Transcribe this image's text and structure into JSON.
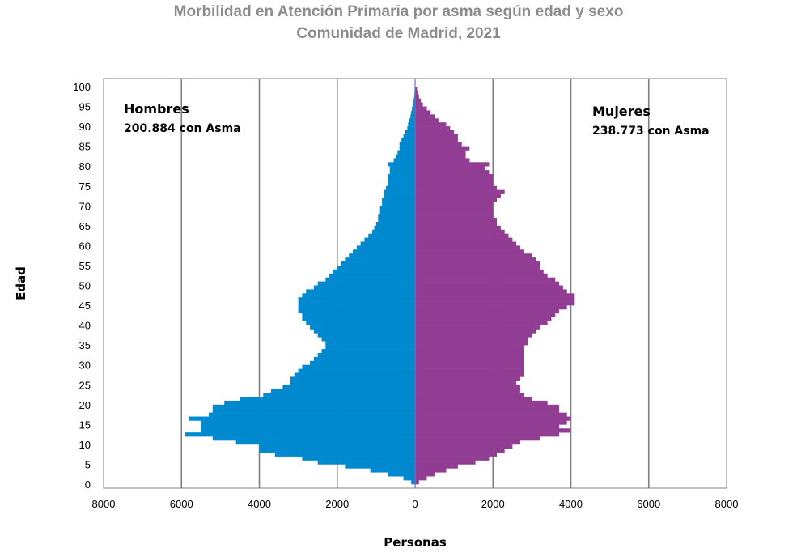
{
  "chart_data": {
    "type": "bar",
    "orientation": "horizontal",
    "title": "Morbilidad en Atención Primaria por asma según edad y sexo",
    "subtitle": "Comunidad de Madrid, 2021",
    "xlabel": "Personas",
    "ylabel": "Edad",
    "xlim": [
      -8000,
      8000
    ],
    "ylim": [
      0,
      100
    ],
    "x_ticks": [
      -8000,
      -6000,
      -4000,
      -2000,
      0,
      2000,
      4000,
      6000,
      8000
    ],
    "x_tick_labels": [
      "8000",
      "6000",
      "4000",
      "2000",
      "0",
      "2000",
      "4000",
      "6000",
      "8000"
    ],
    "y_ticks": [
      0,
      5,
      10,
      15,
      20,
      25,
      30,
      35,
      40,
      45,
      50,
      55,
      60,
      65,
      70,
      75,
      80,
      85,
      90,
      95,
      100
    ],
    "grid": "vertical",
    "ages": [
      0,
      1,
      2,
      3,
      4,
      5,
      6,
      7,
      8,
      9,
      10,
      11,
      12,
      13,
      14,
      15,
      16,
      17,
      18,
      19,
      20,
      21,
      22,
      23,
      24,
      25,
      26,
      27,
      28,
      29,
      30,
      31,
      32,
      33,
      34,
      35,
      36,
      37,
      38,
      39,
      40,
      41,
      42,
      43,
      44,
      45,
      46,
      47,
      48,
      49,
      50,
      51,
      52,
      53,
      54,
      55,
      56,
      57,
      58,
      59,
      60,
      61,
      62,
      63,
      64,
      65,
      66,
      67,
      68,
      69,
      70,
      71,
      72,
      73,
      74,
      75,
      76,
      77,
      78,
      79,
      80,
      81,
      82,
      83,
      84,
      85,
      86,
      87,
      88,
      89,
      90,
      91,
      92,
      93,
      94,
      95,
      96,
      97,
      98,
      99
    ],
    "series": [
      {
        "name": "Hombres",
        "color": "#0089cf",
        "values": [
          100,
          300,
          700,
          1150,
          1800,
          2500,
          2900,
          3600,
          4000,
          4000,
          4600,
          5200,
          5900,
          5500,
          5500,
          5500,
          5800,
          5300,
          5200,
          5200,
          4900,
          4500,
          3900,
          3700,
          3400,
          3200,
          3200,
          3100,
          3000,
          2900,
          2700,
          2600,
          2500,
          2400,
          2300,
          2300,
          2400,
          2500,
          2600,
          2700,
          2800,
          2900,
          2900,
          3000,
          3000,
          3000,
          3000,
          2900,
          2800,
          2600,
          2500,
          2300,
          2200,
          2100,
          2000,
          1900,
          1800,
          1700,
          1600,
          1500,
          1400,
          1300,
          1200,
          1100,
          1050,
          1000,
          950,
          950,
          900,
          900,
          850,
          850,
          800,
          800,
          750,
          700,
          700,
          700,
          650,
          650,
          700,
          550,
          500,
          450,
          400,
          400,
          350,
          300,
          250,
          200,
          180,
          150,
          120,
          100,
          80,
          60,
          40,
          25,
          15,
          8
        ]
      },
      {
        "name": "Mujeres",
        "color": "#913d94",
        "values": [
          100,
          300,
          500,
          800,
          1100,
          1550,
          1900,
          2100,
          2300,
          2500,
          2700,
          3200,
          3700,
          4000,
          3700,
          3900,
          4000,
          3900,
          3700,
          3700,
          3400,
          3000,
          2800,
          2700,
          2700,
          2600,
          2700,
          2800,
          2800,
          2800,
          2800,
          2800,
          2800,
          2800,
          2800,
          2900,
          2900,
          3000,
          3100,
          3200,
          3400,
          3500,
          3600,
          3700,
          3900,
          4100,
          4100,
          4100,
          3900,
          3800,
          3700,
          3600,
          3400,
          3300,
          3200,
          3200,
          3100,
          3000,
          2800,
          2700,
          2600,
          2500,
          2400,
          2300,
          2200,
          2100,
          2100,
          2000,
          2000,
          2000,
          2000,
          2100,
          2200,
          2300,
          2100,
          2000,
          2000,
          2000,
          1900,
          1800,
          1900,
          1400,
          1300,
          1300,
          1400,
          1200,
          1100,
          1100,
          1000,
          900,
          800,
          600,
          500,
          400,
          300,
          200,
          150,
          100,
          80,
          50
        ]
      }
    ],
    "annotations": [
      {
        "label": "Hombres",
        "detail": "200.884 con Asma",
        "position": "top-left"
      },
      {
        "label": "Mujeres",
        "detail": "238.773 con Asma",
        "position": "top-right"
      }
    ]
  }
}
